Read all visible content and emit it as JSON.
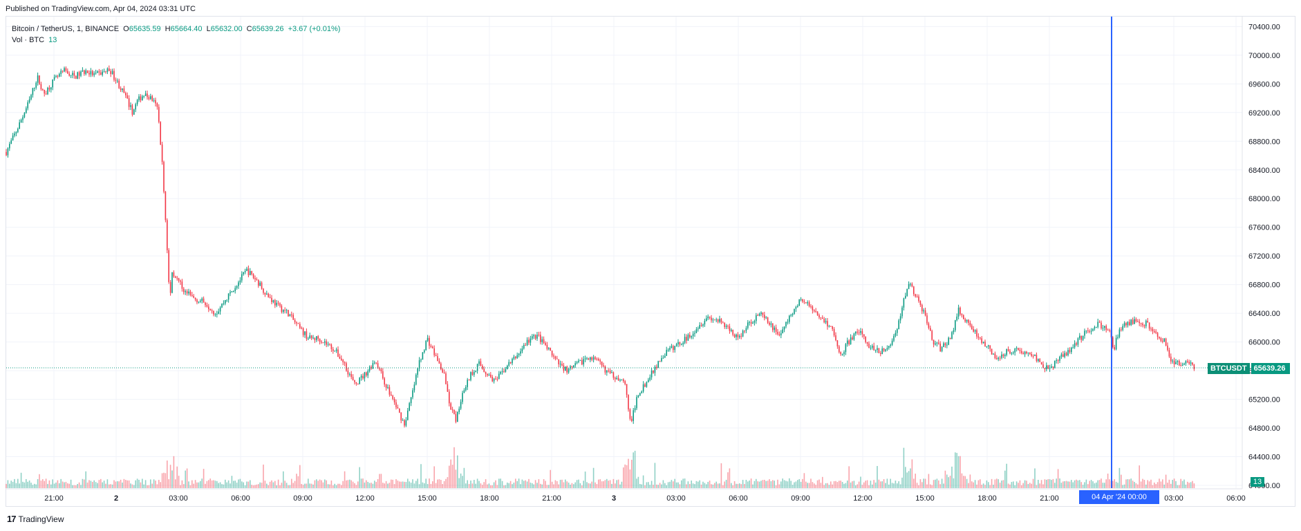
{
  "header": {
    "published": "Published on TradingView.com, Apr 04, 2024 03:31 UTC"
  },
  "legend": {
    "symbol": "Bitcoin / TetherUS, 1, BINANCE",
    "open_label": "O",
    "open": "65635.59",
    "high_label": "H",
    "high": "65664.40",
    "low_label": "L",
    "low": "65632.00",
    "close_label": "C",
    "close": "65639.26",
    "change": "+3.67 (+0.01%)",
    "volume_label": "Vol · BTC",
    "volume_value": "13"
  },
  "badges": {
    "symbol_name": "BTCUSDT",
    "last_price": "65639.26",
    "volume": "13",
    "crosshair_time": "04 Apr '24   00:00"
  },
  "footer": {
    "brand": "TradingView",
    "brand_mark": "17"
  },
  "colors": {
    "up": "#089981",
    "down": "#f23645",
    "crosshair": "#2962ff",
    "grid": "#f0f3fa"
  },
  "chart_data": {
    "type": "candlestick",
    "title": "Bitcoin / TetherUS, 1, BINANCE",
    "interval": "1 minute",
    "ylim": [
      64000,
      70500
    ],
    "last_price": 65639.26,
    "y_ticks": [
      "70400.00",
      "70000.00",
      "69600.00",
      "69200.00",
      "68800.00",
      "68400.00",
      "68000.00",
      "67600.00",
      "67200.00",
      "66800.00",
      "66400.00",
      "66000.00",
      "65600.00",
      "65200.00",
      "64800.00",
      "64400.00",
      "64000.00"
    ],
    "x_ticks": [
      "21:00",
      "2",
      "03:00",
      "06:00",
      "09:00",
      "12:00",
      "15:00",
      "18:00",
      "21:00",
      "3",
      "03:00",
      "06:00",
      "09:00",
      "12:00",
      "15:00",
      "18:00",
      "21:00",
      "03:00",
      "06:00"
    ],
    "x_axis_hours": [
      -3,
      0,
      3,
      6,
      9,
      12,
      15,
      18,
      21,
      24,
      27,
      30,
      33,
      36,
      39,
      42,
      45,
      51,
      54
    ],
    "x_range_hours": [
      -5.3,
      54.3
    ],
    "crosshair_hours": 48,
    "price_path": [
      [
        -5.3,
        68650
      ],
      [
        -4.8,
        68950
      ],
      [
        -4.2,
        69350
      ],
      [
        -3.8,
        69700
      ],
      [
        -3.5,
        69450
      ],
      [
        -3.0,
        69650
      ],
      [
        -2.5,
        69780
      ],
      [
        -2.0,
        69700
      ],
      [
        -1.5,
        69780
      ],
      [
        -1.0,
        69720
      ],
      [
        -0.3,
        69800
      ],
      [
        0.0,
        69650
      ],
      [
        0.4,
        69450
      ],
      [
        0.8,
        69200
      ],
      [
        1.0,
        69350
      ],
      [
        1.3,
        69450
      ],
      [
        1.7,
        69400
      ],
      [
        2.0,
        69250
      ],
      [
        2.2,
        68600
      ],
      [
        2.4,
        67600
      ],
      [
        2.6,
        66500
      ],
      [
        2.65,
        67000
      ],
      [
        2.9,
        66900
      ],
      [
        3.3,
        66700
      ],
      [
        3.8,
        66600
      ],
      [
        4.3,
        66550
      ],
      [
        4.8,
        66400
      ],
      [
        5.3,
        66600
      ],
      [
        5.8,
        66800
      ],
      [
        6.3,
        67000
      ],
      [
        6.8,
        66850
      ],
      [
        7.3,
        66650
      ],
      [
        7.8,
        66500
      ],
      [
        8.3,
        66400
      ],
      [
        8.8,
        66200
      ],
      [
        9.3,
        66050
      ],
      [
        9.8,
        66050
      ],
      [
        10.5,
        65900
      ],
      [
        11.0,
        65700
      ],
      [
        11.5,
        65400
      ],
      [
        12.0,
        65550
      ],
      [
        12.5,
        65750
      ],
      [
        13.0,
        65400
      ],
      [
        13.5,
        65100
      ],
      [
        13.9,
        64850
      ],
      [
        14.3,
        65300
      ],
      [
        14.6,
        65700
      ],
      [
        15.0,
        66050
      ],
      [
        15.4,
        65800
      ],
      [
        15.8,
        65550
      ],
      [
        16.1,
        65100
      ],
      [
        16.4,
        64900
      ],
      [
        16.7,
        65300
      ],
      [
        17.1,
        65550
      ],
      [
        17.5,
        65700
      ],
      [
        17.9,
        65550
      ],
      [
        18.3,
        65450
      ],
      [
        18.8,
        65650
      ],
      [
        19.3,
        65800
      ],
      [
        19.8,
        66000
      ],
      [
        20.3,
        66100
      ],
      [
        20.8,
        65900
      ],
      [
        21.3,
        65700
      ],
      [
        21.8,
        65600
      ],
      [
        22.3,
        65700
      ],
      [
        22.8,
        65800
      ],
      [
        23.3,
        65700
      ],
      [
        23.8,
        65550
      ],
      [
        24.3,
        65500
      ],
      [
        24.6,
        65350
      ],
      [
        24.8,
        64850
      ],
      [
        25.2,
        65300
      ],
      [
        25.6,
        65450
      ],
      [
        26.0,
        65650
      ],
      [
        26.5,
        65850
      ],
      [
        27.0,
        65950
      ],
      [
        27.5,
        66050
      ],
      [
        28.0,
        66200
      ],
      [
        28.5,
        66350
      ],
      [
        29.0,
        66300
      ],
      [
        29.5,
        66200
      ],
      [
        30.0,
        66050
      ],
      [
        30.5,
        66250
      ],
      [
        31.0,
        66400
      ],
      [
        31.5,
        66250
      ],
      [
        32.0,
        66100
      ],
      [
        32.5,
        66350
      ],
      [
        33.0,
        66600
      ],
      [
        33.5,
        66500
      ],
      [
        34.0,
        66350
      ],
      [
        34.5,
        66200
      ],
      [
        34.9,
        65800
      ],
      [
        35.3,
        66000
      ],
      [
        35.8,
        66150
      ],
      [
        36.3,
        65950
      ],
      [
        36.8,
        65850
      ],
      [
        37.3,
        65950
      ],
      [
        37.7,
        66200
      ],
      [
        37.9,
        66500
      ],
      [
        38.2,
        66850
      ],
      [
        38.6,
        66600
      ],
      [
        39.0,
        66400
      ],
      [
        39.4,
        66000
      ],
      [
        39.8,
        65900
      ],
      [
        40.3,
        66100
      ],
      [
        40.6,
        66450
      ],
      [
        41.0,
        66300
      ],
      [
        41.5,
        66100
      ],
      [
        42.0,
        65950
      ],
      [
        42.4,
        65750
      ],
      [
        42.8,
        65850
      ],
      [
        43.3,
        65900
      ],
      [
        43.8,
        65850
      ],
      [
        44.3,
        65800
      ],
      [
        44.8,
        65650
      ],
      [
        45.3,
        65700
      ],
      [
        45.8,
        65850
      ],
      [
        46.3,
        66000
      ],
      [
        46.8,
        66150
      ],
      [
        47.3,
        66250
      ],
      [
        47.9,
        66150
      ],
      [
        48.1,
        65900
      ],
      [
        48.3,
        66100
      ],
      [
        48.7,
        66250
      ],
      [
        49.2,
        66300
      ],
      [
        49.7,
        66250
      ],
      [
        50.2,
        66100
      ],
      [
        50.6,
        66000
      ],
      [
        50.9,
        65700
      ],
      [
        51.3,
        65700
      ],
      [
        51.7,
        65750
      ],
      [
        52.0,
        65650
      ]
    ],
    "volume_spikes_hours": [
      2.6,
      16.4,
      24.8,
      38.2,
      40.5
    ]
  }
}
